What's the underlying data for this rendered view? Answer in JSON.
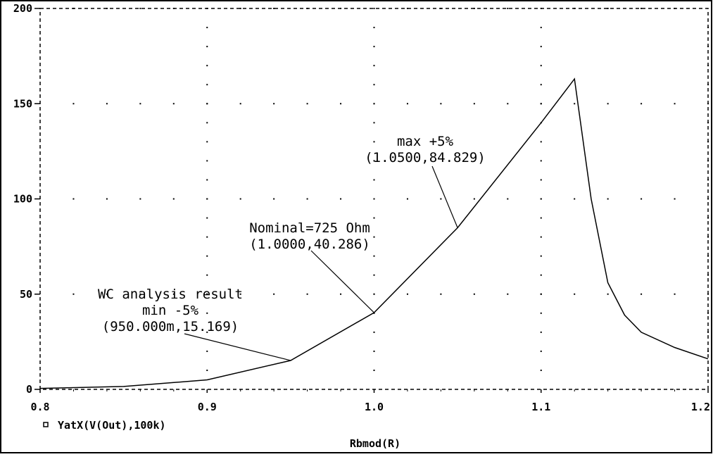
{
  "chart_data": {
    "type": "line",
    "title": "",
    "xlabel": "Rbmod(R)",
    "ylabel": "",
    "xlim": [
      0.8,
      1.2
    ],
    "ylim": [
      0,
      200
    ],
    "grid": true,
    "legend_position": "bottom-left",
    "x_ticks": [
      "0.8",
      "0.9",
      "1.0",
      "1.1",
      "1.2"
    ],
    "y_ticks": [
      "0",
      "50",
      "100",
      "150",
      "200"
    ],
    "series": [
      {
        "name": "YatX(V(Out),100k)",
        "color": "#000000",
        "x": [
          0.8,
          0.85,
          0.9,
          0.95,
          1.0,
          1.05,
          1.1,
          1.12,
          1.13,
          1.14,
          1.15,
          1.16,
          1.18,
          1.2
        ],
        "y": [
          0.5,
          1.5,
          5,
          15.169,
          40.286,
          84.829,
          140,
          163,
          100,
          56,
          39,
          30,
          22,
          16
        ]
      }
    ],
    "annotations": [
      {
        "lines": [
          "max  +5%",
          "(1.0500,84.829)"
        ],
        "point": [
          1.05,
          84.829
        ]
      },
      {
        "lines": [
          "Nominal=725 Ohm",
          "(1.0000,40.286)"
        ],
        "point": [
          1.0,
          40.286
        ]
      },
      {
        "lines": [
          "WC analysis result",
          "min  -5%",
          "(950.000m,15.169)"
        ],
        "point": [
          0.95,
          15.169
        ]
      }
    ]
  }
}
